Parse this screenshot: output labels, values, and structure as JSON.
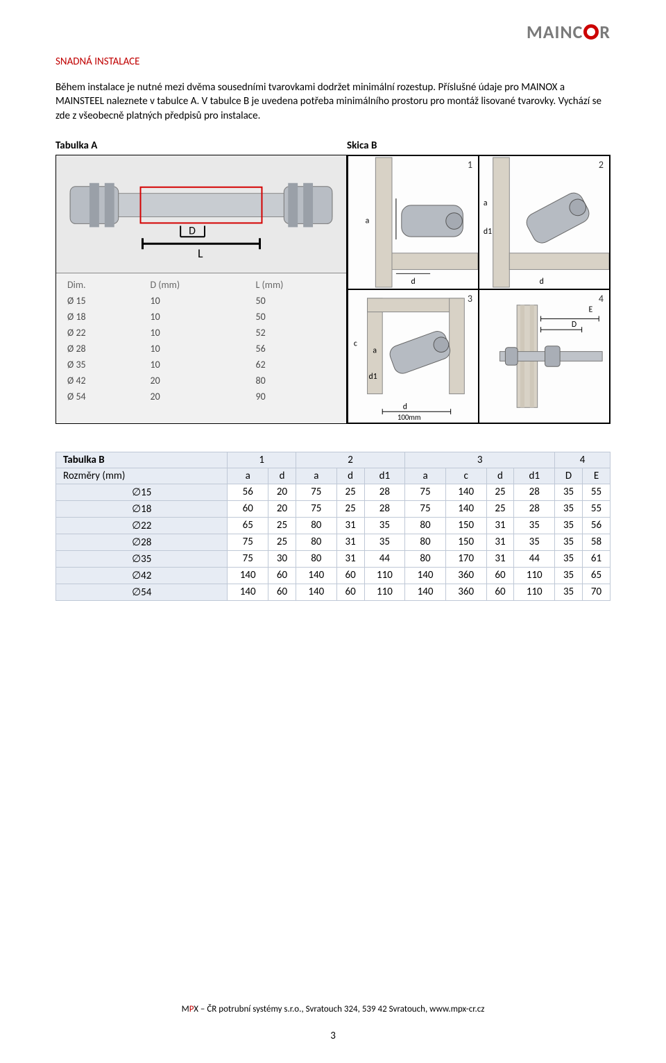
{
  "logo_text_left": "MAINC",
  "logo_text_right": "R",
  "section_title": "SNADNÁ INSTALACE",
  "paragraph1": "Během instalace je nutné mezi dvěma sousedními tvarovkami dodržet minimální rozestup. Příslušné údaje pro MAINOX a MAINSTEEL naleznete v tabulce A. V tabulce B je uvedena potřeba minimálního prostoru pro montáž lisované tvarovky. Vychází se zde z všeobecně platných předpisů pro instalace.",
  "label_tabulka_a": "Tabulka A",
  "label_skica_b": "Skica B",
  "tabA": {
    "columns": [
      "Dim.",
      "D (mm)",
      "L (mm)"
    ],
    "rows": [
      [
        "Ø 15",
        "10",
        "50"
      ],
      [
        "Ø 18",
        "10",
        "50"
      ],
      [
        "Ø 22",
        "10",
        "52"
      ],
      [
        "Ø 28",
        "10",
        "56"
      ],
      [
        "Ø 35",
        "10",
        "62"
      ],
      [
        "Ø 42",
        "20",
        "80"
      ],
      [
        "Ø 54",
        "20",
        "90"
      ]
    ],
    "draw_D": "D",
    "draw_L": "L"
  },
  "skica_labels": {
    "a": "a",
    "d": "d",
    "d1": "d1",
    "c": "c",
    "D": "D",
    "E": "E",
    "scale": "100mm"
  },
  "skica_nums": [
    "1",
    "2",
    "3",
    "4"
  ],
  "tabB": {
    "title_cell": "Tabulka B",
    "group_headers": [
      "1",
      "2",
      "3",
      "4"
    ],
    "sub_row_label": "Rozměry (mm)",
    "sub_headers": [
      "a",
      "d",
      "a",
      "d",
      "d1",
      "a",
      "c",
      "d",
      "d1",
      "D",
      "E"
    ],
    "rows": [
      {
        "dim": "∅15",
        "vals": [
          "56",
          "20",
          "75",
          "25",
          "28",
          "75",
          "140",
          "25",
          "28",
          "35",
          "55"
        ]
      },
      {
        "dim": "∅18",
        "vals": [
          "60",
          "20",
          "75",
          "25",
          "28",
          "75",
          "140",
          "25",
          "28",
          "35",
          "55"
        ]
      },
      {
        "dim": "∅22",
        "vals": [
          "65",
          "25",
          "80",
          "31",
          "35",
          "80",
          "150",
          "31",
          "35",
          "35",
          "56"
        ]
      },
      {
        "dim": "∅28",
        "vals": [
          "75",
          "25",
          "80",
          "31",
          "35",
          "80",
          "150",
          "31",
          "35",
          "35",
          "58"
        ]
      },
      {
        "dim": "∅35",
        "vals": [
          "75",
          "30",
          "80",
          "31",
          "44",
          "80",
          "170",
          "31",
          "44",
          "35",
          "61"
        ]
      },
      {
        "dim": "∅42",
        "vals": [
          "140",
          "60",
          "140",
          "60",
          "110",
          "140",
          "360",
          "60",
          "110",
          "35",
          "65"
        ]
      },
      {
        "dim": "∅54",
        "vals": [
          "140",
          "60",
          "140",
          "60",
          "110",
          "140",
          "360",
          "60",
          "110",
          "35",
          "70"
        ]
      }
    ]
  },
  "footer": {
    "m_label": "M",
    "p_label": "P",
    "x_text": "X – ČR potrubní systémy s.r.o., Svratouch 324, 539 42 Svratouch, www.mpx-cr.cz",
    "page": "3"
  }
}
